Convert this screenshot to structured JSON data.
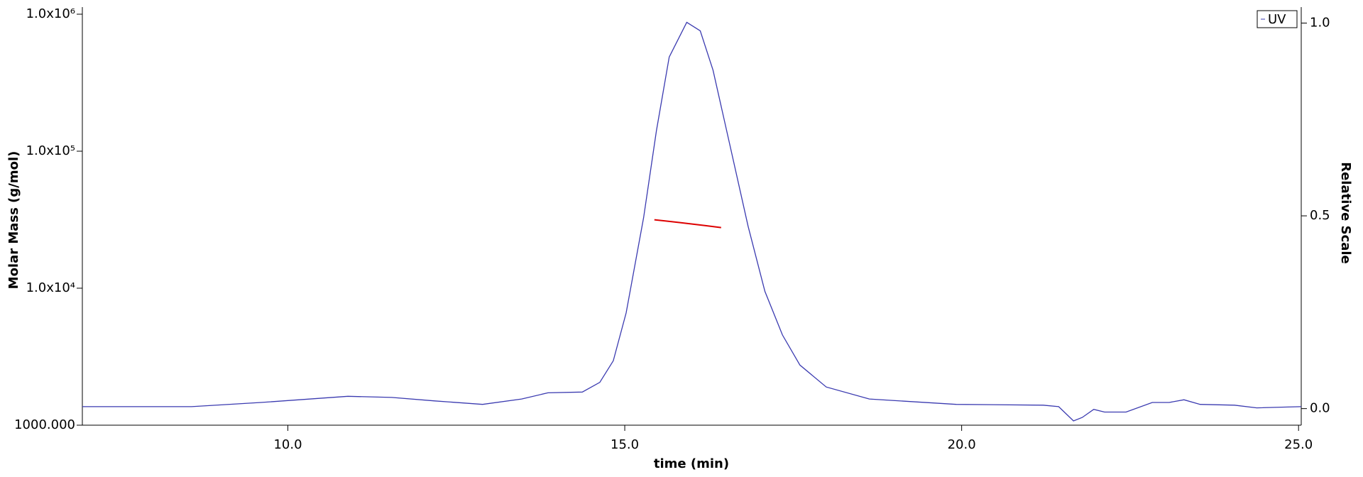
{
  "chart_data": {
    "type": "line",
    "xlabel": "time (min)",
    "ylabel": "Molar Mass (g/mol)",
    "y2label": "Relative Scale",
    "xlim": [
      6.95,
      25.04
    ],
    "xticks": [
      {
        "value": 10,
        "label": "10.0"
      },
      {
        "value": 15,
        "label": "15.0"
      },
      {
        "value": 20,
        "label": "20.0"
      },
      {
        "value": 25,
        "label": "25.0"
      }
    ],
    "ylim": [
      1000,
      1000000
    ],
    "yscale": "log",
    "yticks": [
      {
        "value": 1000,
        "label": "1000.000"
      },
      {
        "value": 10000,
        "label": "1.0x10⁴"
      },
      {
        "value": 100000,
        "label": "1.0x10⁵"
      },
      {
        "value": 1000000,
        "label": "1.0x10⁶"
      }
    ],
    "y2lim": [
      -0.043,
      1.023
    ],
    "y2ticks": [
      {
        "value": 0,
        "label": "0.0"
      },
      0.5,
      {
        "value": 1,
        "label": "1.0"
      }
    ],
    "legend": "upper right",
    "series": [
      {
        "name": "UV",
        "color": "#3a3ab0",
        "axis": "y2",
        "x": [
          6.95,
          8.57,
          9.6,
          10.89,
          11.54,
          12.18,
          12.89,
          13.47,
          13.86,
          14.37,
          14.63,
          14.83,
          15.02,
          15.28,
          15.47,
          15.66,
          15.92,
          16.12,
          16.31,
          16.57,
          16.83,
          17.08,
          17.34,
          17.6,
          17.99,
          18.63,
          19.92,
          21.21,
          21.44,
          21.66,
          21.79,
          21.96,
          22.12,
          22.44,
          22.83,
          23.08,
          23.3,
          23.54,
          24.05,
          24.38,
          25.04
        ],
        "values": [
          0.005,
          0.005,
          0.016,
          0.032,
          0.029,
          0.02,
          0.011,
          0.025,
          0.041,
          0.043,
          0.068,
          0.124,
          0.248,
          0.495,
          0.721,
          0.912,
          1.002,
          0.98,
          0.878,
          0.676,
          0.473,
          0.304,
          0.191,
          0.113,
          0.056,
          0.025,
          0.011,
          0.009,
          0.005,
          -0.032,
          -0.023,
          -0.002,
          -0.009,
          -0.009,
          0.016,
          0.016,
          0.023,
          0.011,
          0.009,
          0.002,
          0.005
        ]
      },
      {
        "color": "#dd0000",
        "axis": "y",
        "x": [
          15.44,
          15.6,
          15.8,
          16.0,
          16.2,
          16.43
        ],
        "values": [
          31600,
          31000,
          30200,
          29400,
          28600,
          27700
        ]
      }
    ]
  }
}
